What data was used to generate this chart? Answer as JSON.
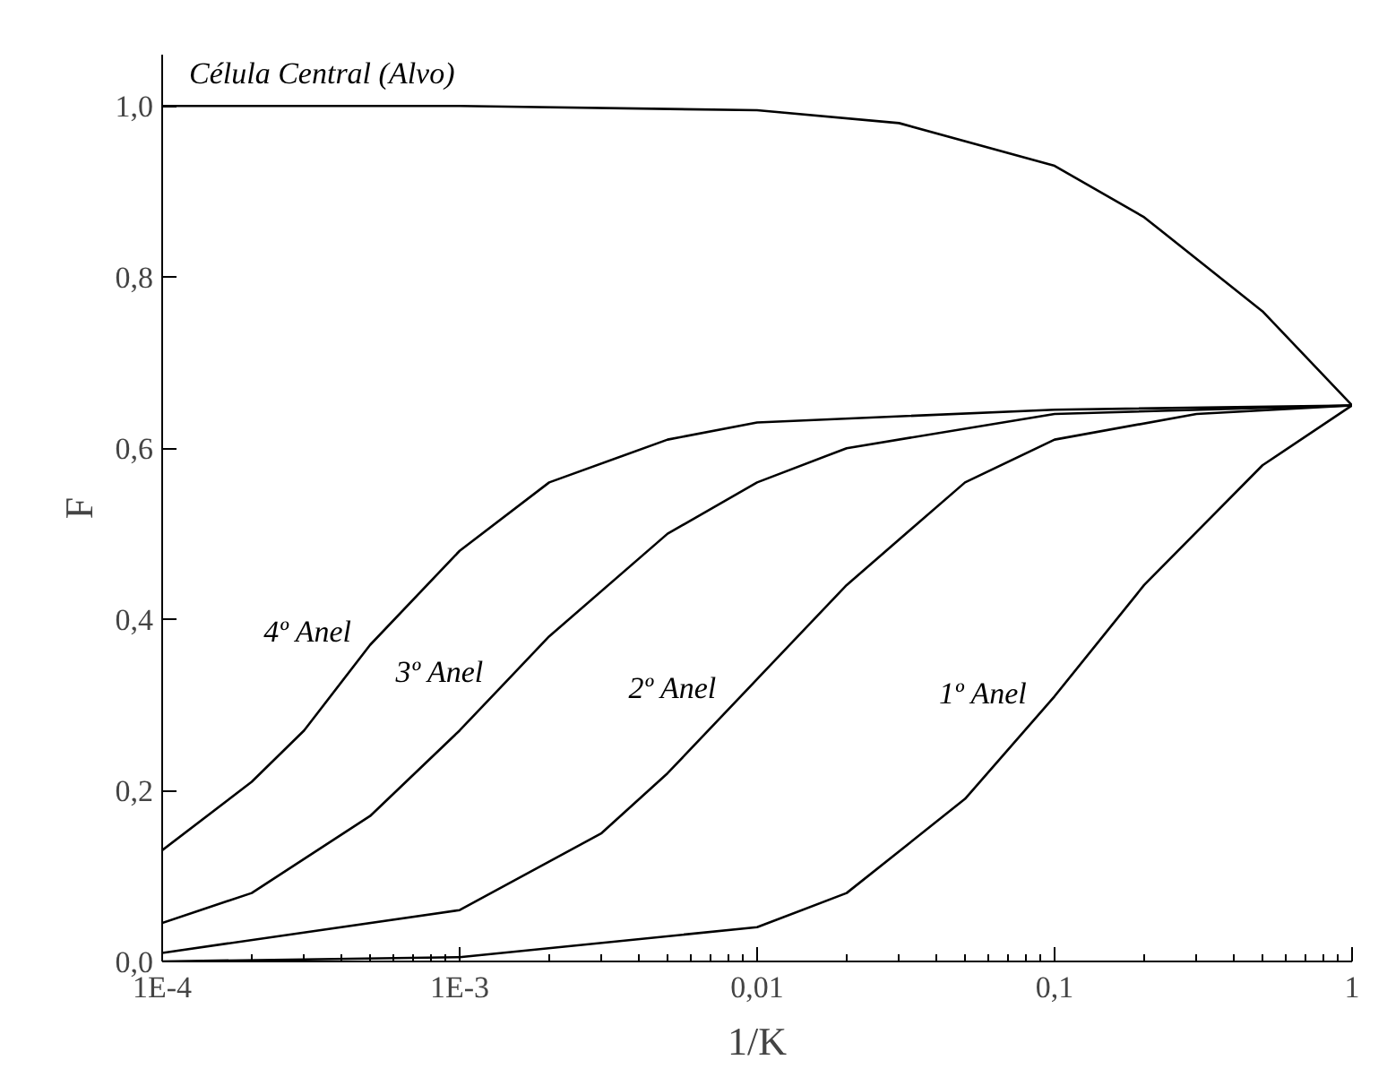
{
  "chart_data": {
    "type": "line",
    "xlabel": "1/K",
    "ylabel": "F",
    "log": "x",
    "xlim": [
      0.0001,
      1
    ],
    "ylim": [
      0,
      1.06
    ],
    "xticks": [
      {
        "value": 0.0001,
        "label": "1E-4"
      },
      {
        "value": 0.001,
        "label": "1E-3"
      },
      {
        "value": 0.01,
        "label": "0,01"
      },
      {
        "value": 0.1,
        "label": "0,1"
      },
      {
        "value": 1,
        "label": "1"
      }
    ],
    "yticks": [
      {
        "value": 0,
        "label": "0,0"
      },
      {
        "value": 0.2,
        "label": "0,2"
      },
      {
        "value": 0.4,
        "label": "0,4"
      },
      {
        "value": 0.6,
        "label": "0,6"
      },
      {
        "value": 0.8,
        "label": "0,8"
      },
      {
        "value": 1,
        "label": "1,0"
      }
    ],
    "grid": false,
    "marker": "none",
    "line_style": "solid",
    "series": [
      {
        "name": "Célula Central (Alvo)",
        "color": "#000000",
        "x": [
          0.0001,
          0.001,
          0.01,
          0.03,
          0.1,
          0.2,
          0.5,
          1
        ],
        "values": [
          1,
          1,
          0.995,
          0.98,
          0.93,
          0.87,
          0.76,
          0.65
        ]
      },
      {
        "name": "4º Anel",
        "color": "#000000",
        "x": [
          0.0001,
          0.0002,
          0.0003,
          0.0005,
          0.001,
          0.002,
          0.005,
          0.01,
          0.1,
          1
        ],
        "values": [
          0.13,
          0.21,
          0.27,
          0.37,
          0.48,
          0.56,
          0.61,
          0.63,
          0.645,
          0.65
        ]
      },
      {
        "name": "3º Anel",
        "color": "#000000",
        "x": [
          0.0001,
          0.0002,
          0.0005,
          0.001,
          0.002,
          0.005,
          0.01,
          0.02,
          0.1,
          1
        ],
        "values": [
          0.045,
          0.08,
          0.17,
          0.27,
          0.38,
          0.5,
          0.56,
          0.6,
          0.64,
          0.65
        ]
      },
      {
        "name": "2º Anel",
        "color": "#000000",
        "x": [
          0.0001,
          0.001,
          0.003,
          0.005,
          0.01,
          0.02,
          0.05,
          0.1,
          0.3,
          1
        ],
        "values": [
          0.01,
          0.06,
          0.15,
          0.22,
          0.33,
          0.44,
          0.56,
          0.61,
          0.64,
          0.65
        ]
      },
      {
        "name": "1º Anel",
        "color": "#000000",
        "x": [
          0.0001,
          0.001,
          0.01,
          0.02,
          0.05,
          0.1,
          0.2,
          0.5,
          1
        ],
        "values": [
          0,
          0.005,
          0.04,
          0.08,
          0.19,
          0.31,
          0.44,
          0.58,
          0.65
        ]
      }
    ]
  }
}
